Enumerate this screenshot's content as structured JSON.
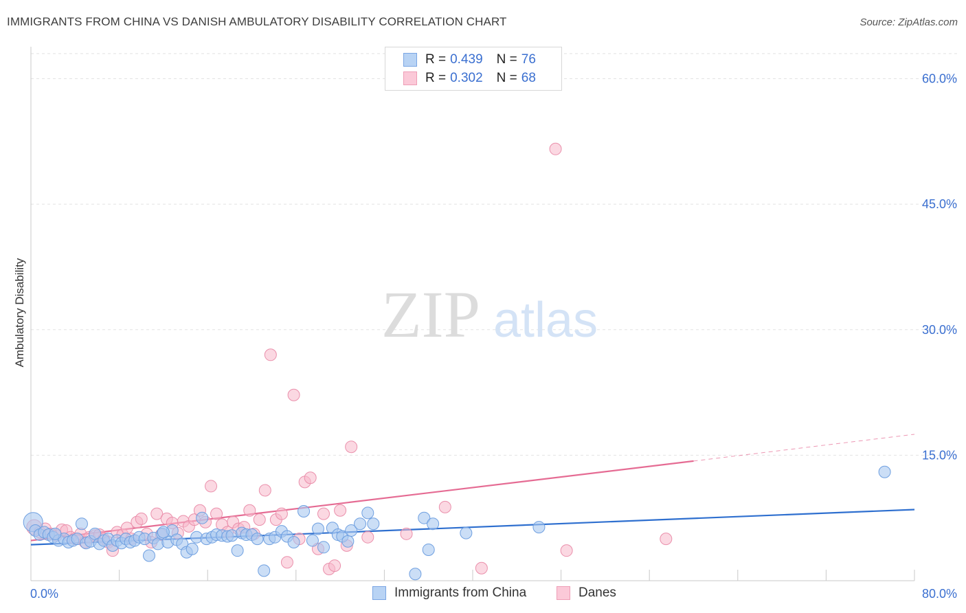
{
  "header": {
    "title": "IMMIGRANTS FROM CHINA VS DANISH AMBULATORY DISABILITY CORRELATION CHART",
    "source": "Source: ZipAtlas.com"
  },
  "legend": {
    "series1": {
      "r_label": "R =",
      "r_value": "0.439",
      "n_label": "N =",
      "n_value": "76"
    },
    "series2": {
      "r_label": "R =",
      "r_value": "0.302",
      "n_label": "N =",
      "n_value": "68"
    }
  },
  "watermark": {
    "zip": "ZIP",
    "atlas": "atlas"
  },
  "colors": {
    "blue_fill": "#a8c8f0",
    "blue_stroke": "#6e9fe0",
    "blue_line": "#2e6fcf",
    "pink_fill": "#f7b8cb",
    "pink_stroke": "#ea8fab",
    "pink_line": "#e56b93",
    "grid": "#e2e2e2",
    "tick_text": "#3a6fd0"
  },
  "chart_data": {
    "type": "scatter",
    "title": "IMMIGRANTS FROM CHINA VS DANISH AMBULATORY DISABILITY CORRELATION CHART",
    "xlabel": "",
    "ylabel": "Ambulatory Disability",
    "xlim": [
      0,
      80
    ],
    "ylim": [
      0,
      63
    ],
    "x_tick_labels": [
      "0.0%",
      "80.0%"
    ],
    "y_ticks": [
      15,
      30,
      45,
      60
    ],
    "y_tick_labels": [
      "15.0%",
      "30.0%",
      "45.0%",
      "60.0%"
    ],
    "grid": true,
    "series": [
      {
        "name": "Immigrants from China",
        "r": 0.439,
        "n": 76,
        "trend": {
          "x": [
            0,
            80
          ],
          "y": [
            4.3,
            8.5
          ]
        },
        "points": [
          [
            0.2,
            7.0
          ],
          [
            0.4,
            6.0
          ],
          [
            0.8,
            5.5
          ],
          [
            1.2,
            5.8
          ],
          [
            1.6,
            5.5
          ],
          [
            2.0,
            5.2
          ],
          [
            2.5,
            4.8
          ],
          [
            3.0,
            5.0
          ],
          [
            3.4,
            4.6
          ],
          [
            3.8,
            4.8
          ],
          [
            4.2,
            5.0
          ],
          [
            4.6,
            6.8
          ],
          [
            5.0,
            4.5
          ],
          [
            5.4,
            4.7
          ],
          [
            5.8,
            5.6
          ],
          [
            6.2,
            4.4
          ],
          [
            6.6,
            4.8
          ],
          [
            7.0,
            5.0
          ],
          [
            7.4,
            4.2
          ],
          [
            7.8,
            4.8
          ],
          [
            8.2,
            4.5
          ],
          [
            8.6,
            5.0
          ],
          [
            9.0,
            4.6
          ],
          [
            9.4,
            4.8
          ],
          [
            9.8,
            5.2
          ],
          [
            10.3,
            5.0
          ],
          [
            10.7,
            3.0
          ],
          [
            11.1,
            5.1
          ],
          [
            11.5,
            4.4
          ],
          [
            11.9,
            5.6
          ],
          [
            12.4,
            4.6
          ],
          [
            12.8,
            6.0
          ],
          [
            13.2,
            4.9
          ],
          [
            13.7,
            4.4
          ],
          [
            14.1,
            3.4
          ],
          [
            14.6,
            3.8
          ],
          [
            15.0,
            5.2
          ],
          [
            15.5,
            7.5
          ],
          [
            15.9,
            5.0
          ],
          [
            16.4,
            5.2
          ],
          [
            16.8,
            5.5
          ],
          [
            17.3,
            5.4
          ],
          [
            17.8,
            5.3
          ],
          [
            18.2,
            5.4
          ],
          [
            18.7,
            3.6
          ],
          [
            19.1,
            5.7
          ],
          [
            19.5,
            5.5
          ],
          [
            20.0,
            5.5
          ],
          [
            20.5,
            5.0
          ],
          [
            21.1,
            1.2
          ],
          [
            21.6,
            5.0
          ],
          [
            22.1,
            5.2
          ],
          [
            22.7,
            5.9
          ],
          [
            23.2,
            5.3
          ],
          [
            23.8,
            4.6
          ],
          [
            24.7,
            8.3
          ],
          [
            25.5,
            4.8
          ],
          [
            26.0,
            6.2
          ],
          [
            26.5,
            4.0
          ],
          [
            27.3,
            6.3
          ],
          [
            27.8,
            5.5
          ],
          [
            28.2,
            5.3
          ],
          [
            28.7,
            4.7
          ],
          [
            29.0,
            6.0
          ],
          [
            29.8,
            6.8
          ],
          [
            30.5,
            8.1
          ],
          [
            31.0,
            6.8
          ],
          [
            34.8,
            0.8
          ],
          [
            35.6,
            7.5
          ],
          [
            36.0,
            3.7
          ],
          [
            36.4,
            6.8
          ],
          [
            39.4,
            5.7
          ],
          [
            46.0,
            6.4
          ],
          [
            77.3,
            13.0
          ],
          [
            2.2,
            5.6
          ],
          [
            12.0,
            5.8
          ]
        ]
      },
      {
        "name": "Danes",
        "r": 0.302,
        "n": 68,
        "trend": {
          "x": [
            0,
            60
          ],
          "y": [
            4.8,
            14.3
          ]
        },
        "trend_dashed": {
          "x": [
            60,
            80
          ],
          "y": [
            14.3,
            17.5
          ]
        },
        "points": [
          [
            0.3,
            6.4
          ],
          [
            0.8,
            5.8
          ],
          [
            1.3,
            6.2
          ],
          [
            1.8,
            5.6
          ],
          [
            2.3,
            5.4
          ],
          [
            2.8,
            6.1
          ],
          [
            3.2,
            6.0
          ],
          [
            3.6,
            5.2
          ],
          [
            4.0,
            5.0
          ],
          [
            4.5,
            5.6
          ],
          [
            4.9,
            4.6
          ],
          [
            5.3,
            5.2
          ],
          [
            5.8,
            5.4
          ],
          [
            6.2,
            5.5
          ],
          [
            6.6,
            5.0
          ],
          [
            7.0,
            4.6
          ],
          [
            7.4,
            3.6
          ],
          [
            7.8,
            5.8
          ],
          [
            8.3,
            5.5
          ],
          [
            8.7,
            6.3
          ],
          [
            9.1,
            5.0
          ],
          [
            9.6,
            7.0
          ],
          [
            10.0,
            7.4
          ],
          [
            10.5,
            5.6
          ],
          [
            10.9,
            4.6
          ],
          [
            11.4,
            8.0
          ],
          [
            11.8,
            5.5
          ],
          [
            12.3,
            7.4
          ],
          [
            12.8,
            6.9
          ],
          [
            13.3,
            5.7
          ],
          [
            13.8,
            7.1
          ],
          [
            14.3,
            6.5
          ],
          [
            14.8,
            7.3
          ],
          [
            15.3,
            8.4
          ],
          [
            15.8,
            7.0
          ],
          [
            16.3,
            11.3
          ],
          [
            16.8,
            8.0
          ],
          [
            17.3,
            6.7
          ],
          [
            17.8,
            5.8
          ],
          [
            18.3,
            7.0
          ],
          [
            18.8,
            6.2
          ],
          [
            19.3,
            6.4
          ],
          [
            19.8,
            8.4
          ],
          [
            20.2,
            5.6
          ],
          [
            20.7,
            7.3
          ],
          [
            21.2,
            10.8
          ],
          [
            21.7,
            27.0
          ],
          [
            22.2,
            7.3
          ],
          [
            22.7,
            8.0
          ],
          [
            23.2,
            2.2
          ],
          [
            23.8,
            22.2
          ],
          [
            24.3,
            5.0
          ],
          [
            24.8,
            11.8
          ],
          [
            25.3,
            12.3
          ],
          [
            26.0,
            3.8
          ],
          [
            26.5,
            8.0
          ],
          [
            27.0,
            1.4
          ],
          [
            27.5,
            1.8
          ],
          [
            28.0,
            8.4
          ],
          [
            28.6,
            4.2
          ],
          [
            29.0,
            16.0
          ],
          [
            30.5,
            5.2
          ],
          [
            34.0,
            5.6
          ],
          [
            37.5,
            8.8
          ],
          [
            40.8,
            1.5
          ],
          [
            47.5,
            51.6
          ],
          [
            48.5,
            3.6
          ],
          [
            57.5,
            5.0
          ]
        ]
      }
    ]
  },
  "bottom_legend": {
    "item1": "Immigrants from China",
    "item2": "Danes"
  }
}
